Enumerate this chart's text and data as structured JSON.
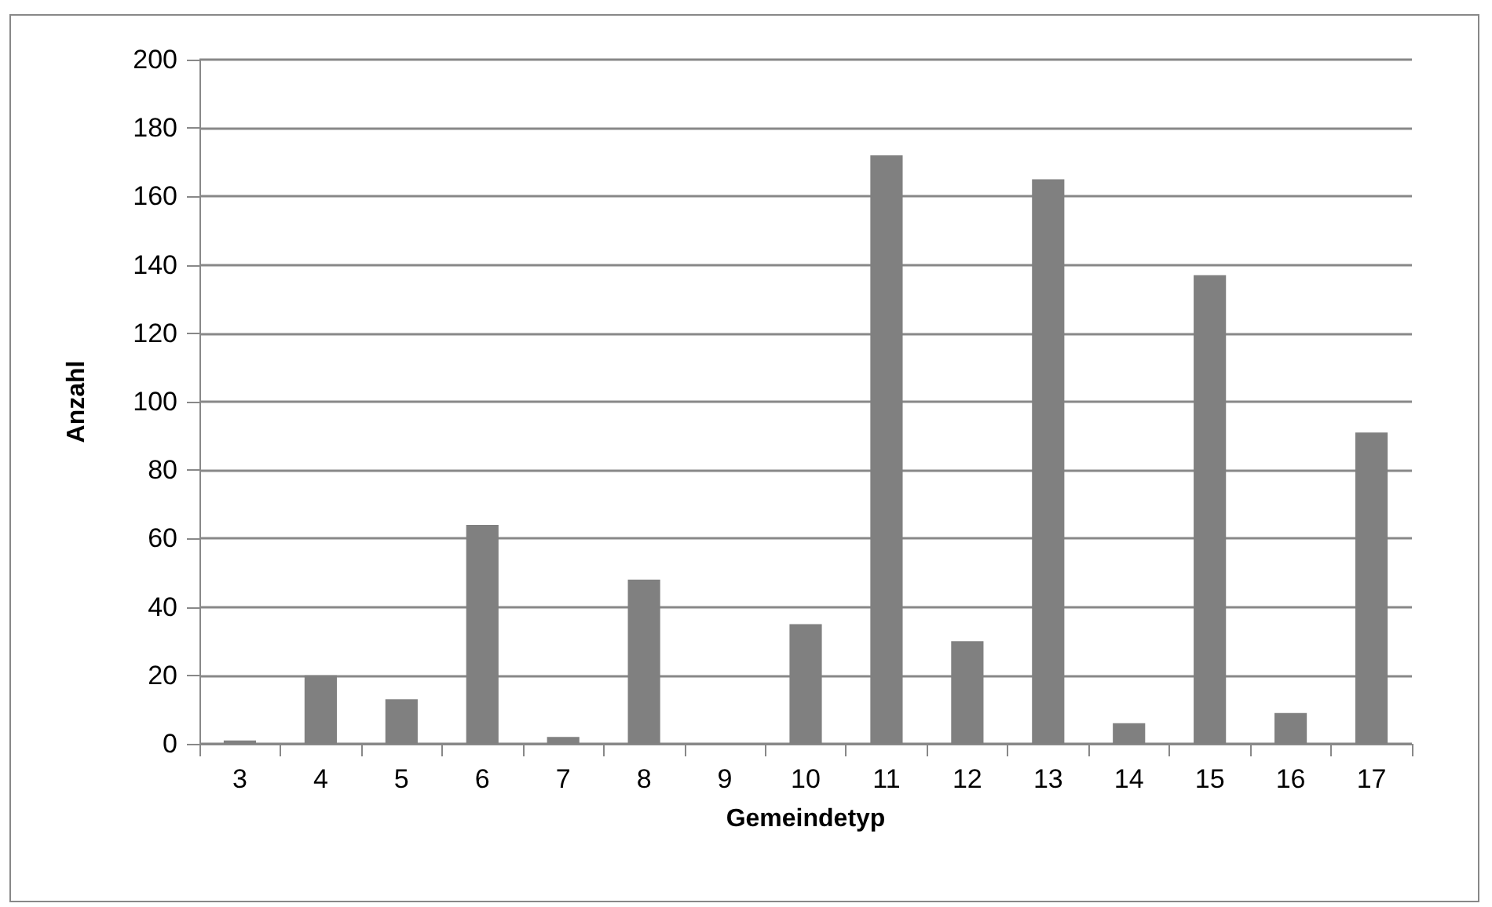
{
  "chart_data": {
    "type": "bar",
    "xlabel": "Gemeindetyp",
    "ylabel": "Anzahl",
    "categories": [
      "3",
      "4",
      "5",
      "6",
      "7",
      "8",
      "9",
      "10",
      "11",
      "12",
      "13",
      "14",
      "15",
      "16",
      "17"
    ],
    "values": [
      1,
      20,
      13,
      64,
      2,
      48,
      0,
      35,
      172,
      30,
      165,
      6,
      137,
      9,
      91
    ],
    "color": "#808080",
    "ylim": [
      0,
      200
    ],
    "yticks": [
      0,
      20,
      40,
      60,
      80,
      100,
      120,
      140,
      160,
      180,
      200
    ],
    "grid": "y"
  }
}
